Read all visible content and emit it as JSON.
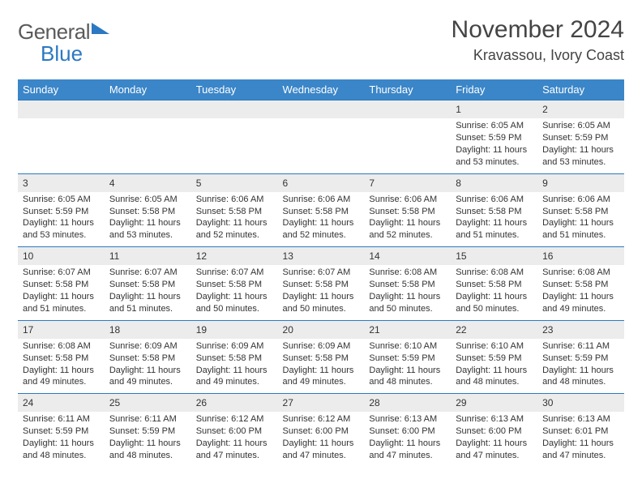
{
  "logo": {
    "general": "General",
    "blue": "Blue"
  },
  "title": "November 2024",
  "location": "Kravassou, Ivory Coast",
  "day_headers": [
    "Sunday",
    "Monday",
    "Tuesday",
    "Wednesday",
    "Thursday",
    "Friday",
    "Saturday"
  ],
  "colors": {
    "header_bg": "#3b86c8",
    "accent": "#2b79c2",
    "daynum_bg": "#ececec",
    "text": "#333333"
  },
  "weeks": [
    {
      "days": [
        {
          "n": "",
          "sunrise": "",
          "sunset": "",
          "daylight": ""
        },
        {
          "n": "",
          "sunrise": "",
          "sunset": "",
          "daylight": ""
        },
        {
          "n": "",
          "sunrise": "",
          "sunset": "",
          "daylight": ""
        },
        {
          "n": "",
          "sunrise": "",
          "sunset": "",
          "daylight": ""
        },
        {
          "n": "",
          "sunrise": "",
          "sunset": "",
          "daylight": ""
        },
        {
          "n": "1",
          "sunrise": "Sunrise: 6:05 AM",
          "sunset": "Sunset: 5:59 PM",
          "daylight": "Daylight: 11 hours and 53 minutes."
        },
        {
          "n": "2",
          "sunrise": "Sunrise: 6:05 AM",
          "sunset": "Sunset: 5:59 PM",
          "daylight": "Daylight: 11 hours and 53 minutes."
        }
      ]
    },
    {
      "days": [
        {
          "n": "3",
          "sunrise": "Sunrise: 6:05 AM",
          "sunset": "Sunset: 5:59 PM",
          "daylight": "Daylight: 11 hours and 53 minutes."
        },
        {
          "n": "4",
          "sunrise": "Sunrise: 6:05 AM",
          "sunset": "Sunset: 5:58 PM",
          "daylight": "Daylight: 11 hours and 53 minutes."
        },
        {
          "n": "5",
          "sunrise": "Sunrise: 6:06 AM",
          "sunset": "Sunset: 5:58 PM",
          "daylight": "Daylight: 11 hours and 52 minutes."
        },
        {
          "n": "6",
          "sunrise": "Sunrise: 6:06 AM",
          "sunset": "Sunset: 5:58 PM",
          "daylight": "Daylight: 11 hours and 52 minutes."
        },
        {
          "n": "7",
          "sunrise": "Sunrise: 6:06 AM",
          "sunset": "Sunset: 5:58 PM",
          "daylight": "Daylight: 11 hours and 52 minutes."
        },
        {
          "n": "8",
          "sunrise": "Sunrise: 6:06 AM",
          "sunset": "Sunset: 5:58 PM",
          "daylight": "Daylight: 11 hours and 51 minutes."
        },
        {
          "n": "9",
          "sunrise": "Sunrise: 6:06 AM",
          "sunset": "Sunset: 5:58 PM",
          "daylight": "Daylight: 11 hours and 51 minutes."
        }
      ]
    },
    {
      "days": [
        {
          "n": "10",
          "sunrise": "Sunrise: 6:07 AM",
          "sunset": "Sunset: 5:58 PM",
          "daylight": "Daylight: 11 hours and 51 minutes."
        },
        {
          "n": "11",
          "sunrise": "Sunrise: 6:07 AM",
          "sunset": "Sunset: 5:58 PM",
          "daylight": "Daylight: 11 hours and 51 minutes."
        },
        {
          "n": "12",
          "sunrise": "Sunrise: 6:07 AM",
          "sunset": "Sunset: 5:58 PM",
          "daylight": "Daylight: 11 hours and 50 minutes."
        },
        {
          "n": "13",
          "sunrise": "Sunrise: 6:07 AM",
          "sunset": "Sunset: 5:58 PM",
          "daylight": "Daylight: 11 hours and 50 minutes."
        },
        {
          "n": "14",
          "sunrise": "Sunrise: 6:08 AM",
          "sunset": "Sunset: 5:58 PM",
          "daylight": "Daylight: 11 hours and 50 minutes."
        },
        {
          "n": "15",
          "sunrise": "Sunrise: 6:08 AM",
          "sunset": "Sunset: 5:58 PM",
          "daylight": "Daylight: 11 hours and 50 minutes."
        },
        {
          "n": "16",
          "sunrise": "Sunrise: 6:08 AM",
          "sunset": "Sunset: 5:58 PM",
          "daylight": "Daylight: 11 hours and 49 minutes."
        }
      ]
    },
    {
      "days": [
        {
          "n": "17",
          "sunrise": "Sunrise: 6:08 AM",
          "sunset": "Sunset: 5:58 PM",
          "daylight": "Daylight: 11 hours and 49 minutes."
        },
        {
          "n": "18",
          "sunrise": "Sunrise: 6:09 AM",
          "sunset": "Sunset: 5:58 PM",
          "daylight": "Daylight: 11 hours and 49 minutes."
        },
        {
          "n": "19",
          "sunrise": "Sunrise: 6:09 AM",
          "sunset": "Sunset: 5:58 PM",
          "daylight": "Daylight: 11 hours and 49 minutes."
        },
        {
          "n": "20",
          "sunrise": "Sunrise: 6:09 AM",
          "sunset": "Sunset: 5:58 PM",
          "daylight": "Daylight: 11 hours and 49 minutes."
        },
        {
          "n": "21",
          "sunrise": "Sunrise: 6:10 AM",
          "sunset": "Sunset: 5:59 PM",
          "daylight": "Daylight: 11 hours and 48 minutes."
        },
        {
          "n": "22",
          "sunrise": "Sunrise: 6:10 AM",
          "sunset": "Sunset: 5:59 PM",
          "daylight": "Daylight: 11 hours and 48 minutes."
        },
        {
          "n": "23",
          "sunrise": "Sunrise: 6:11 AM",
          "sunset": "Sunset: 5:59 PM",
          "daylight": "Daylight: 11 hours and 48 minutes."
        }
      ]
    },
    {
      "days": [
        {
          "n": "24",
          "sunrise": "Sunrise: 6:11 AM",
          "sunset": "Sunset: 5:59 PM",
          "daylight": "Daylight: 11 hours and 48 minutes."
        },
        {
          "n": "25",
          "sunrise": "Sunrise: 6:11 AM",
          "sunset": "Sunset: 5:59 PM",
          "daylight": "Daylight: 11 hours and 48 minutes."
        },
        {
          "n": "26",
          "sunrise": "Sunrise: 6:12 AM",
          "sunset": "Sunset: 6:00 PM",
          "daylight": "Daylight: 11 hours and 47 minutes."
        },
        {
          "n": "27",
          "sunrise": "Sunrise: 6:12 AM",
          "sunset": "Sunset: 6:00 PM",
          "daylight": "Daylight: 11 hours and 47 minutes."
        },
        {
          "n": "28",
          "sunrise": "Sunrise: 6:13 AM",
          "sunset": "Sunset: 6:00 PM",
          "daylight": "Daylight: 11 hours and 47 minutes."
        },
        {
          "n": "29",
          "sunrise": "Sunrise: 6:13 AM",
          "sunset": "Sunset: 6:00 PM",
          "daylight": "Daylight: 11 hours and 47 minutes."
        },
        {
          "n": "30",
          "sunrise": "Sunrise: 6:13 AM",
          "sunset": "Sunset: 6:01 PM",
          "daylight": "Daylight: 11 hours and 47 minutes."
        }
      ]
    }
  ]
}
